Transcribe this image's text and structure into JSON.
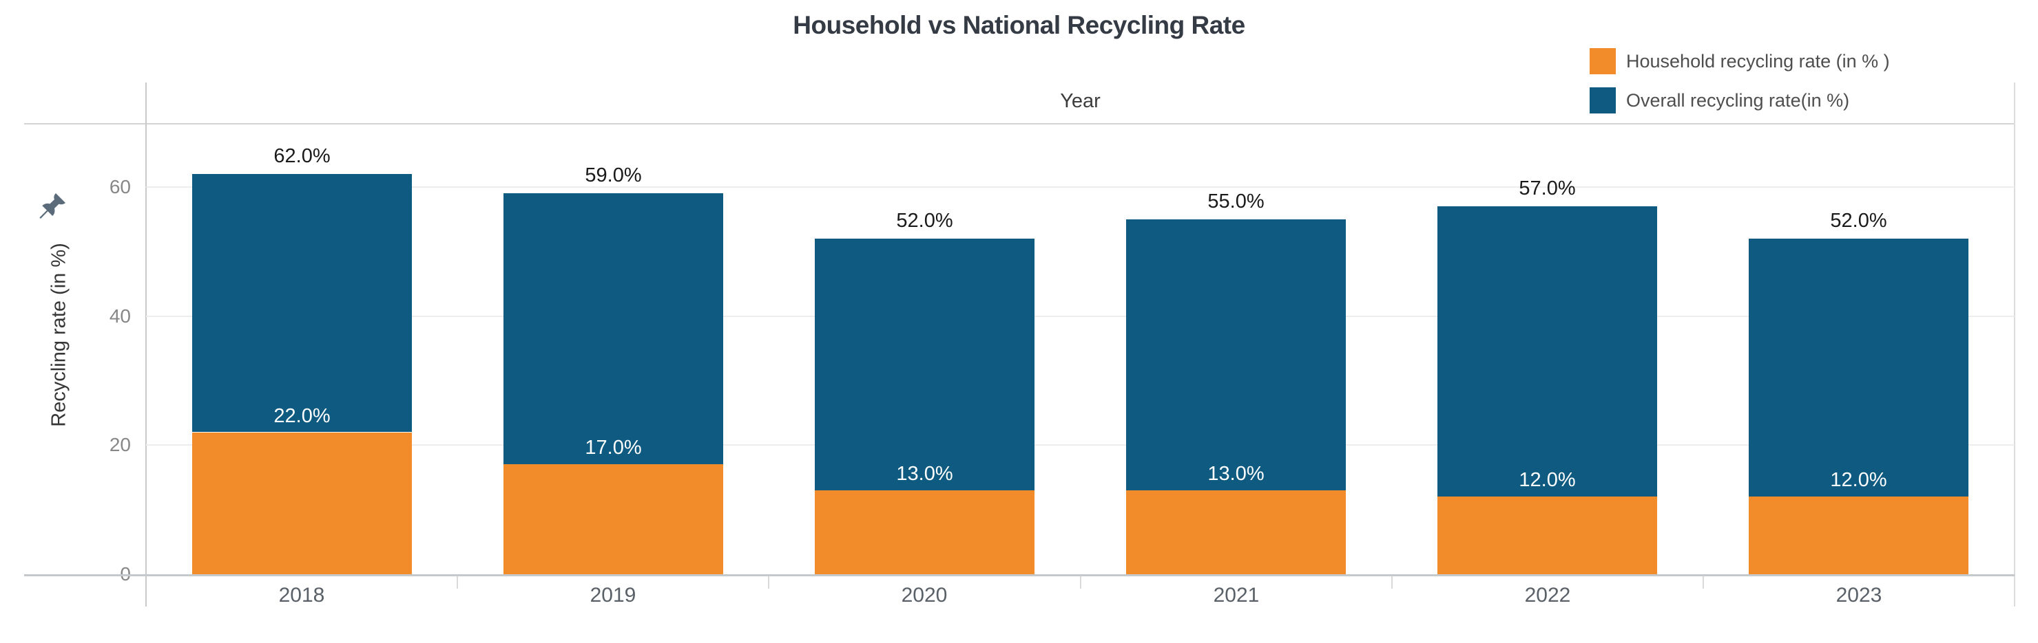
{
  "title": "Household vs National Recycling Rate",
  "column_header": "Year",
  "legend": {
    "items": [
      {
        "label": "Household recycling rate (in % )",
        "color": "#F28C2B"
      },
      {
        "label": "Overall recycling rate(in %)",
        "color": "#0E5A80"
      }
    ]
  },
  "y_axis": {
    "title": "Recycling rate (in %)",
    "ticks": [
      0,
      20,
      40,
      60
    ],
    "tick_labels": [
      "0",
      "20",
      "40",
      "60"
    ]
  },
  "chart_data": {
    "type": "bar",
    "stacked": true,
    "title": "Household vs National Recycling Rate",
    "xlabel": "Year",
    "ylabel": "Recycling rate (in %)",
    "ylim": [
      0,
      70
    ],
    "grid": true,
    "legend_position": "top-right",
    "categories": [
      "2018",
      "2019",
      "2020",
      "2021",
      "2022",
      "2023"
    ],
    "series": [
      {
        "name": "Household recycling rate (in % )",
        "color": "#F28C2B",
        "role": "bottom-segment",
        "values": [
          22,
          17,
          13,
          13,
          12,
          12
        ],
        "data_labels": [
          "22.0%",
          "17.0%",
          "13.0%",
          "13.0%",
          "12.0%",
          "12.0%"
        ],
        "label_color": "#FFFFFF"
      },
      {
        "name": "Overall recycling rate(in %)",
        "color": "#0E5A80",
        "role": "stack-total",
        "values": [
          62,
          59,
          52,
          55,
          57,
          52
        ],
        "data_labels": [
          "62.0%",
          "59.0%",
          "52.0%",
          "55.0%",
          "57.0%",
          "52.0%"
        ],
        "label_color": "#1a1a1a"
      }
    ]
  }
}
